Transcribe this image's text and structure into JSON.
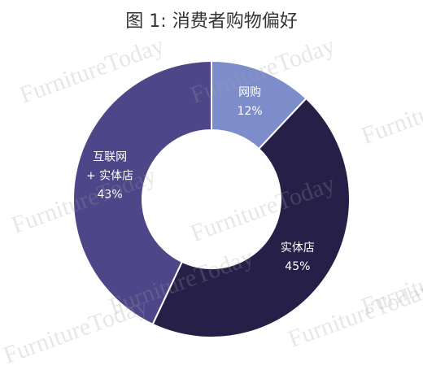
{
  "chart_data": {
    "type": "donut",
    "title": "图 1: 消费者购物偏好",
    "watermark": "FurnitureToday",
    "categories": [
      "网购",
      "实体店",
      "互联网\n+ 实体店"
    ],
    "values": [
      12,
      45,
      43
    ],
    "value_labels": [
      "12%",
      "45%",
      "43%"
    ],
    "colors": [
      "#7d8dcc",
      "#262049",
      "#4d4689"
    ]
  }
}
